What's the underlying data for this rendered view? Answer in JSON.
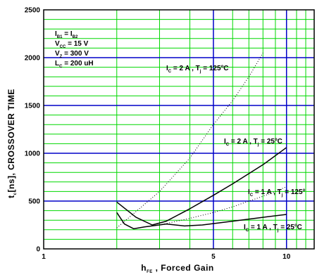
{
  "chart_data": {
    "type": "line",
    "x_scale": "log",
    "xlim": [
      1,
      13
    ],
    "ylim": [
      0,
      2500
    ],
    "grid": true,
    "x_ticks": [
      {
        "value": 1,
        "label": "1"
      },
      {
        "value": 5,
        "label": "5"
      },
      {
        "value": 10,
        "label": "10"
      }
    ],
    "y_ticks": [
      {
        "value": 0,
        "label": "0"
      },
      {
        "value": 500,
        "label": "500"
      },
      {
        "value": 1000,
        "label": "1000"
      },
      {
        "value": 1500,
        "label": "1500"
      },
      {
        "value": 2000,
        "label": "2000"
      },
      {
        "value": 2500,
        "label": "2500"
      }
    ],
    "xlabel": {
      "main": "h",
      "sub": "FE",
      "rest": " , Forced Gain"
    },
    "ylabel": {
      "main": "t",
      "sub": "c",
      "rest": "[ns], CROSSOVER TIME"
    },
    "conditions": [
      {
        "main": "I",
        "sub": "B1",
        "rest": " = I",
        "sub2": "B2"
      },
      {
        "main": "V",
        "sub": "CC",
        "rest": " = 15 V",
        "sub2": ""
      },
      {
        "main": "V",
        "sub": "Z",
        "rest": " = 300 V",
        "sub2": ""
      },
      {
        "main": "L",
        "sub": "C",
        "rest": " = 200 uH",
        "sub2": ""
      }
    ],
    "series": [
      {
        "label": {
          "a": "I",
          "asub": "C",
          "b": " = 2 A , T",
          "bsub": "j",
          "c": " = 125",
          "sup": "o",
          "d": "C"
        },
        "style": "dotted",
        "points": [
          [
            2,
            220
          ],
          [
            3,
            600
          ],
          [
            4,
            950
          ],
          [
            5,
            1300
          ],
          [
            6,
            1550
          ],
          [
            7,
            1800
          ],
          [
            8,
            2050
          ]
        ]
      },
      {
        "label": {
          "a": "I",
          "asub": "C",
          "b": " = 2 A , T",
          "bsub": "j",
          "c": " = 25",
          "sup": "o",
          "d": "C"
        },
        "style": "solid",
        "points": [
          [
            2,
            490
          ],
          [
            2.4,
            330
          ],
          [
            2.8,
            250
          ],
          [
            3.2,
            290
          ],
          [
            4,
            420
          ],
          [
            5,
            560
          ],
          [
            6,
            680
          ],
          [
            8,
            880
          ],
          [
            10,
            1060
          ]
        ]
      },
      {
        "label": {
          "a": "I",
          "asub": "C",
          "b": " = 1 A , T",
          "bsub": "j",
          "c": " = 125",
          "sup": "o",
          "d": ""
        },
        "style": "dotted",
        "points": [
          [
            3,
            250
          ],
          [
            4,
            320
          ],
          [
            5,
            380
          ],
          [
            6,
            440
          ],
          [
            7,
            500
          ],
          [
            8,
            550
          ],
          [
            9,
            600
          ],
          [
            10,
            650
          ]
        ]
      },
      {
        "label": {
          "a": "I",
          "asub": "C",
          "b": " = 1 A , T",
          "bsub": "j",
          "c": " = 25",
          "sup": "o",
          "d": "C"
        },
        "style": "solid",
        "points": [
          [
            2,
            380
          ],
          [
            2.15,
            260
          ],
          [
            2.35,
            210
          ],
          [
            2.6,
            230
          ],
          [
            3.2,
            260
          ],
          [
            3.8,
            240
          ],
          [
            4.5,
            250
          ],
          [
            6,
            290
          ],
          [
            8,
            330
          ],
          [
            10,
            360
          ]
        ]
      }
    ],
    "colors": {
      "major_grid": "#0000c8",
      "minor_grid": "#00d800",
      "curve": "#000000"
    }
  }
}
